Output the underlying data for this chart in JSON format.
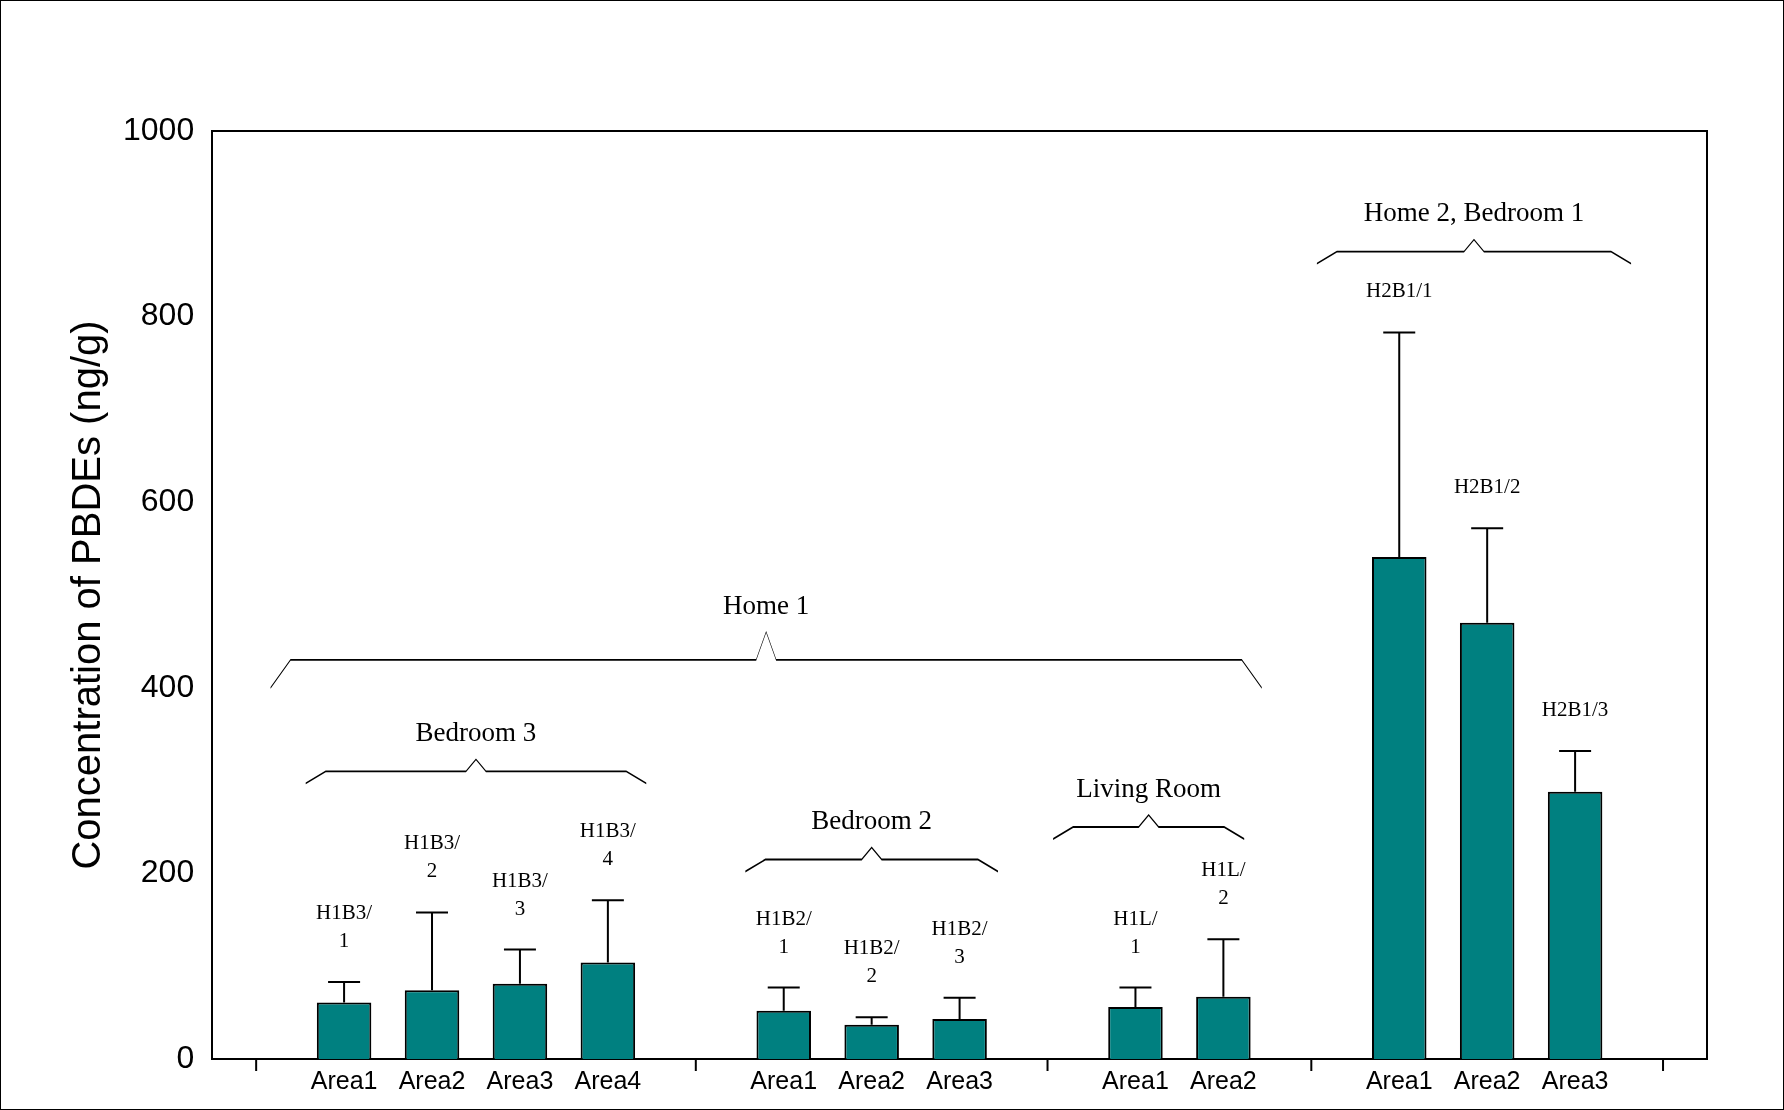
{
  "chart_data": {
    "type": "bar",
    "ylabel": "Concentration of PBDEs (ng/g)",
    "categories": [
      null,
      "Area1",
      "Area2",
      "Area3",
      "Area4",
      null,
      "Area1",
      "Area2",
      "Area3",
      null,
      "Area1",
      "Area2",
      null,
      "Area1",
      "Area2",
      "Area3",
      null
    ],
    "values": [
      null,
      61,
      74,
      81,
      104,
      null,
      52,
      37,
      43,
      null,
      56,
      67,
      null,
      541,
      470,
      288,
      null
    ],
    "errors": [
      null,
      [
        61,
        83
      ],
      [
        74,
        158
      ],
      [
        81,
        118
      ],
      [
        104,
        171
      ],
      null,
      [
        52,
        77
      ],
      [
        37,
        45
      ],
      [
        43,
        66
      ],
      null,
      [
        56,
        77
      ],
      [
        67,
        129
      ],
      null,
      [
        541,
        783
      ],
      [
        470,
        572
      ],
      [
        288,
        332
      ],
      null
    ],
    "color": "#008080",
    "ylim": [
      0,
      1000
    ],
    "yticks": [
      0,
      200,
      400,
      600,
      800,
      1000
    ],
    "annotations": [
      "H1B3/\n1",
      "H1B3/\n2",
      "H1B3/\n3",
      "H1B3/\n4",
      "H1B2/\n1",
      "H1B2/\n2",
      "H1B2/\n3",
      "H1L/\n1",
      "H1L/\n2",
      "H2B1/1",
      "H2B1/2",
      "H2B1/3",
      "Bedroom 3",
      "Bedroom 2",
      "Living Room",
      "Home 1",
      "Home 2, Bedroom 1"
    ],
    "grid": false,
    "legend": false
  }
}
